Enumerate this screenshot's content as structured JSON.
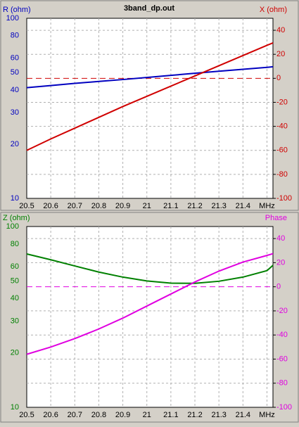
{
  "chart_data": [
    {
      "type": "line",
      "title": "3band_dp.out",
      "ylabel": "R (ohm)",
      "y2label": "X (ohm)",
      "ylabel_color": "#0000c0",
      "y2label_color": "#d00000",
      "x": [
        20.5,
        20.6,
        20.7,
        20.8,
        20.9,
        21.0,
        21.1,
        21.2,
        21.3,
        21.4,
        21.5,
        21.525
      ],
      "xlim": [
        20.5,
        21.525
      ],
      "xticks": [
        20.5,
        20.6,
        20.7,
        20.8,
        20.9,
        21,
        21.1,
        21.2,
        21.3,
        21.4,
        {
          "value": 21.5,
          "label": "MHz"
        }
      ],
      "ylim": [
        10,
        100
      ],
      "yticks": [
        10,
        20,
        30,
        40,
        50,
        60,
        80,
        100
      ],
      "log_y": true,
      "y2lim": [
        -100,
        50
      ],
      "y2ticks": [
        -100,
        -80,
        -60,
        -40,
        -20,
        0,
        20,
        40
      ],
      "grid": true,
      "zero_line": true,
      "series": [
        {
          "color": "#0000c0",
          "axis": "y",
          "values": [
            41.2,
            42.3,
            43.5,
            44.6,
            45.7,
            46.9,
            48.2,
            49.5,
            50.8,
            52.1,
            53.4,
            53.8
          ]
        },
        {
          "color": "#d00000",
          "axis": "y2",
          "values": [
            -60,
            -50.5,
            -41.5,
            -32.5,
            -23.5,
            -15,
            -6.5,
            2,
            10.5,
            19,
            27.5,
            29.5
          ]
        }
      ]
    },
    {
      "type": "line",
      "ylabel": "Z (ohm)",
      "y2label": "Phase",
      "ylabel_color": "#008000",
      "y2label_color": "#e000e0",
      "x": [
        20.5,
        20.6,
        20.7,
        20.8,
        20.9,
        21.0,
        21.1,
        21.2,
        21.3,
        21.4,
        21.5,
        21.525
      ],
      "xlim": [
        20.5,
        21.525
      ],
      "xticks": [
        20.5,
        20.6,
        20.7,
        20.8,
        20.9,
        21,
        21.1,
        21.2,
        21.3,
        21.4,
        {
          "value": 21.5,
          "label": "MHz"
        }
      ],
      "ylim": [
        10,
        100
      ],
      "yticks": [
        10,
        20,
        30,
        40,
        50,
        60,
        80,
        100
      ],
      "log_y": true,
      "y2lim": [
        -100,
        50
      ],
      "y2ticks": [
        -100,
        -80,
        -60,
        -40,
        -20,
        0,
        20,
        40
      ],
      "grid": true,
      "zero_line": true,
      "series": [
        {
          "color": "#008000",
          "axis": "y",
          "values": [
            70.5,
            65.5,
            60.5,
            56,
            52.5,
            50,
            48.6,
            48.5,
            49.8,
            52.5,
            57,
            61
          ]
        },
        {
          "color": "#e000e0",
          "axis": "y2",
          "values": [
            -56,
            -50,
            -43,
            -35,
            -26,
            -16,
            -6,
            4,
            13,
            20.5,
            26,
            27.5
          ]
        }
      ]
    }
  ]
}
